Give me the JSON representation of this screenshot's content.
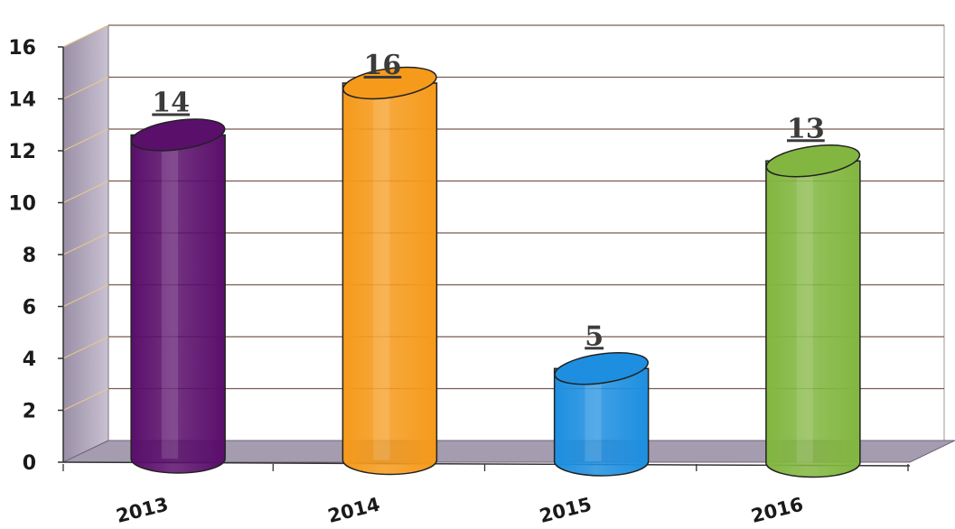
{
  "chart_data": {
    "type": "bar",
    "style": "3d-cylinder",
    "categories": [
      "2013",
      "2014",
      "2015",
      "2016"
    ],
    "values": [
      14,
      16,
      5,
      13
    ],
    "data_labels": [
      "14",
      "16",
      "5",
      "13"
    ],
    "colors": [
      "#5a0f6b",
      "#f59a1b",
      "#1e8fe0",
      "#82b640"
    ],
    "ylim": [
      0,
      16
    ],
    "yticks": [
      "0",
      "2",
      "4",
      "6",
      "8",
      "10",
      "12",
      "14",
      "16"
    ],
    "grid": true,
    "legend": "none",
    "title": "",
    "xlabel": "",
    "ylabel": ""
  }
}
